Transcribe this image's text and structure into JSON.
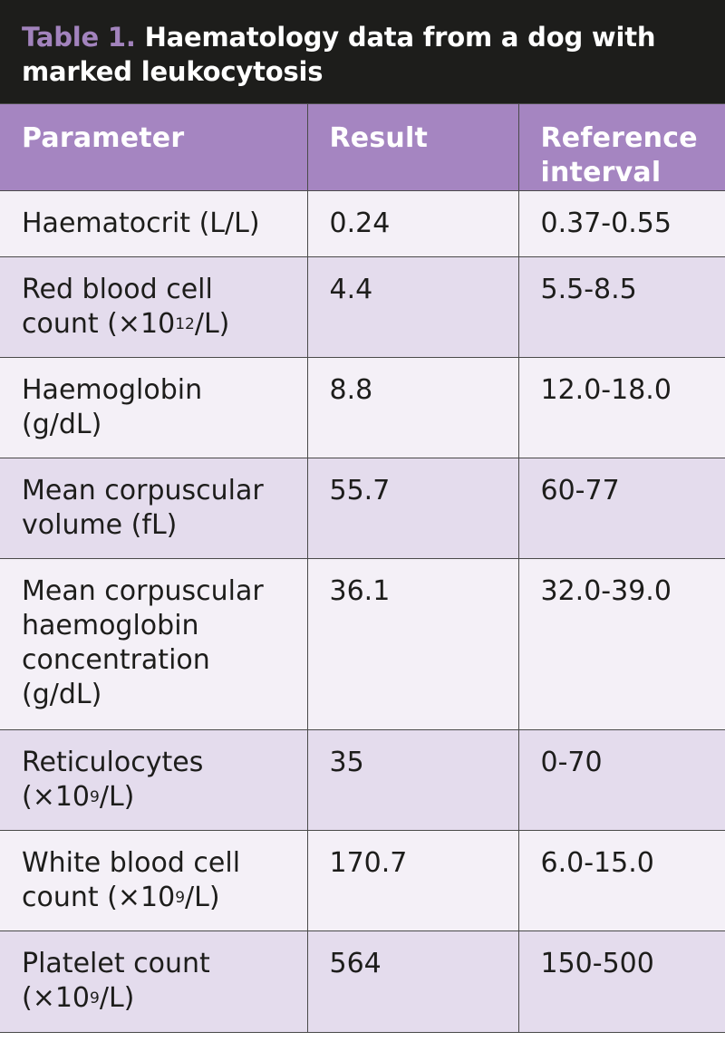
{
  "caption": {
    "number": "Table 1.",
    "title": "Haematology data from a dog with marked leukocytosis"
  },
  "headers": [
    "Parameter",
    "Result",
    "Reference interval"
  ],
  "rows": [
    {
      "parameter": "Haematocrit (L/L)",
      "unit_sup": "",
      "unit_tail": "",
      "result": "0.24",
      "reference": "0.37-0.55"
    },
    {
      "parameter": "Red blood cell count (×10",
      "unit_sup": "12",
      "unit_tail": "/L)",
      "result": "4.4",
      "reference": "5.5-8.5"
    },
    {
      "parameter": "Haemoglobin (g/dL)",
      "unit_sup": "",
      "unit_tail": "",
      "result": "8.8",
      "reference": "12.0-18.0"
    },
    {
      "parameter": "Mean corpuscular volume (fL)",
      "unit_sup": "",
      "unit_tail": "",
      "result": "55.7",
      "reference": "60-77"
    },
    {
      "parameter": "Mean corpuscular haemoglobin concentration (g/dL)",
      "unit_sup": "",
      "unit_tail": "",
      "result": "36.1",
      "reference": "32.0-39.0"
    },
    {
      "parameter": "Reticulocytes (×10",
      "unit_sup": "9",
      "unit_tail": "/L)",
      "result": "35",
      "reference": "0-70"
    },
    {
      "parameter": "White blood cell count (×10",
      "unit_sup": "9",
      "unit_tail": "/L)",
      "result": "170.7",
      "reference": "6.0-15.0"
    },
    {
      "parameter": "Platelet count (×10",
      "unit_sup": "9",
      "unit_tail": "/L)",
      "result": "564",
      "reference": "150-500"
    }
  ]
}
